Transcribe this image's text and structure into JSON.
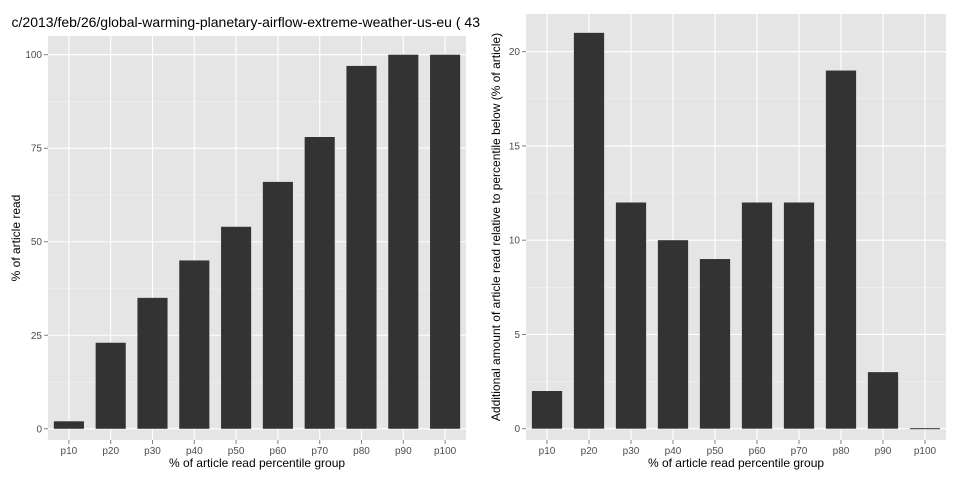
{
  "title": "c/2013/feb/26/global-warming-planetary-airflow-extreme-weather-us-eu ( 43",
  "chart_data": [
    {
      "type": "bar",
      "categories": [
        "p10",
        "p20",
        "p30",
        "p40",
        "p50",
        "p60",
        "p70",
        "p80",
        "p90",
        "p100"
      ],
      "values": [
        2,
        23,
        35,
        45,
        54,
        66,
        78,
        97,
        100,
        100
      ],
      "xlabel": "% of article read percentile group",
      "ylabel": "% of article read",
      "ylim": [
        -3,
        105
      ],
      "yticks": [
        0,
        25,
        50,
        75,
        100
      ],
      "grid": true,
      "colors": {
        "bar": "#333333",
        "panel": "#e5e5e5",
        "grid": "#ffffff"
      }
    },
    {
      "type": "bar",
      "categories": [
        "p10",
        "p20",
        "p30",
        "p40",
        "p50",
        "p60",
        "p70",
        "p80",
        "p90",
        "p100"
      ],
      "values": [
        2,
        21,
        12,
        10,
        9,
        12,
        12,
        19,
        3,
        0
      ],
      "xlabel": "% of article read percentile group",
      "ylabel": "Additional amount of article read relative to percentile below (% of article)",
      "ylim": [
        -0.6,
        22
      ],
      "yticks": [
        0,
        5,
        10,
        15,
        20
      ],
      "grid": true,
      "colors": {
        "bar": "#333333",
        "panel": "#e5e5e5",
        "grid": "#ffffff"
      }
    }
  ]
}
